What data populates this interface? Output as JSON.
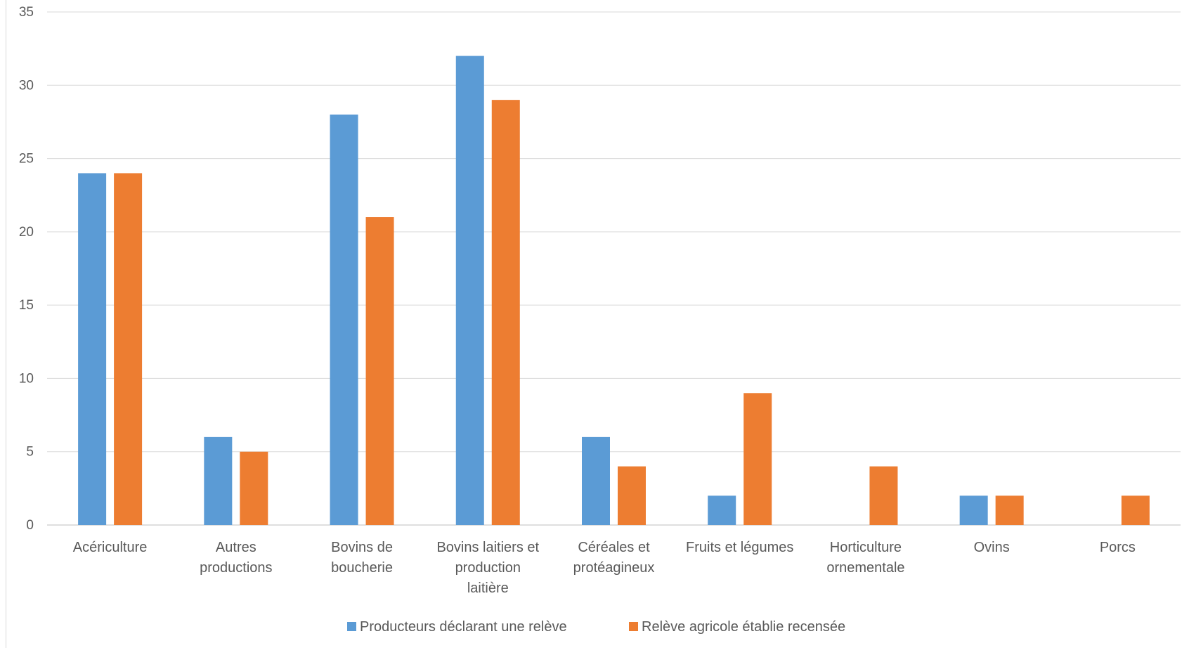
{
  "chart_data": {
    "type": "bar",
    "title": "",
    "xlabel": "",
    "ylabel": "",
    "ylim": [
      0,
      35
    ],
    "yticks": [
      0,
      5,
      10,
      15,
      20,
      25,
      30,
      35
    ],
    "grid": true,
    "legend_position": "bottom",
    "categories": [
      [
        "Acériculture"
      ],
      [
        "Autres",
        "productions"
      ],
      [
        "Bovins de",
        "boucherie"
      ],
      [
        "Bovins laitiers et",
        "production",
        "laitière"
      ],
      [
        "Céréales et",
        "protéagineux"
      ],
      [
        "Fruits et légumes"
      ],
      [
        "Horticulture",
        "ornementale"
      ],
      [
        "Ovins"
      ],
      [
        "Porcs"
      ]
    ],
    "series": [
      {
        "name": "Producteurs déclarant une relève",
        "color": "#5b9bd5",
        "values": [
          24,
          6,
          28,
          32,
          6,
          2,
          0,
          2,
          0
        ]
      },
      {
        "name": "Relève agricole établie recensée",
        "color": "#ed7d31",
        "values": [
          24,
          5,
          21,
          29,
          4,
          9,
          4,
          2,
          2
        ]
      }
    ]
  }
}
